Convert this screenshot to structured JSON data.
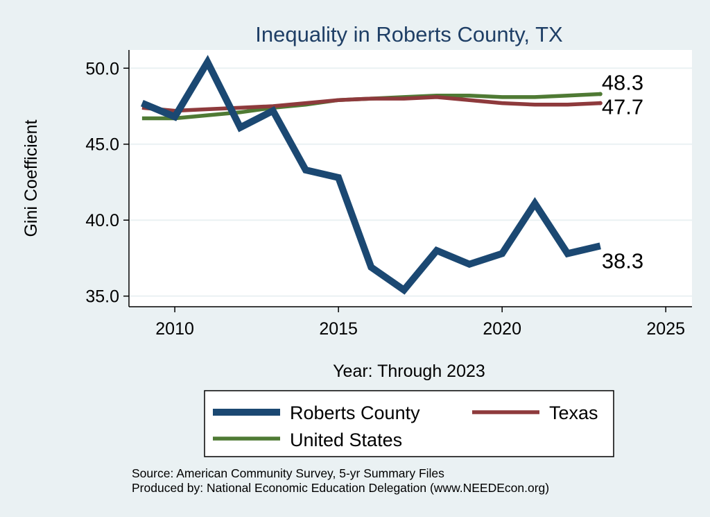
{
  "chart_data": {
    "type": "line",
    "title": "Inequality in Roberts County, TX",
    "xlabel": "Year: Through 2023",
    "ylabel": "Gini Coefficient",
    "xlim": [
      2008.6,
      2025.8
    ],
    "ylim": [
      34.3,
      51.2
    ],
    "x_ticks": [
      2010,
      2015,
      2020,
      2025
    ],
    "y_ticks": [
      35,
      40,
      45,
      50
    ],
    "x_tick_labels": [
      "2010",
      "2015",
      "2020",
      "2025"
    ],
    "y_tick_labels": [
      "35.0",
      "40.0",
      "45.0",
      "50.0"
    ],
    "grid": true,
    "legend_position": "bottom",
    "x": [
      2009,
      2010,
      2011,
      2012,
      2013,
      2014,
      2015,
      2016,
      2017,
      2018,
      2019,
      2020,
      2021,
      2022,
      2023
    ],
    "series": [
      {
        "name": "Roberts County",
        "color": "#1b4872",
        "values": [
          47.7,
          46.8,
          50.4,
          46.1,
          47.2,
          43.3,
          42.8,
          36.9,
          35.4,
          38.0,
          37.1,
          37.8,
          41.1,
          37.8,
          38.3
        ],
        "end_label": "38.3"
      },
      {
        "name": "Texas",
        "color": "#8e3a3c",
        "values": [
          47.4,
          47.2,
          47.3,
          47.4,
          47.5,
          47.7,
          47.9,
          48.0,
          48.0,
          48.1,
          47.9,
          47.7,
          47.6,
          47.6,
          47.7
        ],
        "end_label": "47.7"
      },
      {
        "name": "United States",
        "color": "#4f7a34",
        "values": [
          46.7,
          46.7,
          46.9,
          47.1,
          47.4,
          47.6,
          47.9,
          48.0,
          48.1,
          48.2,
          48.2,
          48.1,
          48.1,
          48.2,
          48.3
        ],
        "end_label": "48.3"
      }
    ],
    "source_lines": [
      "Source: American Community Survey, 5-yr Summary Files",
      "Produced by: National Economic Education Delegation (www.NEEDEcon.org)"
    ]
  }
}
